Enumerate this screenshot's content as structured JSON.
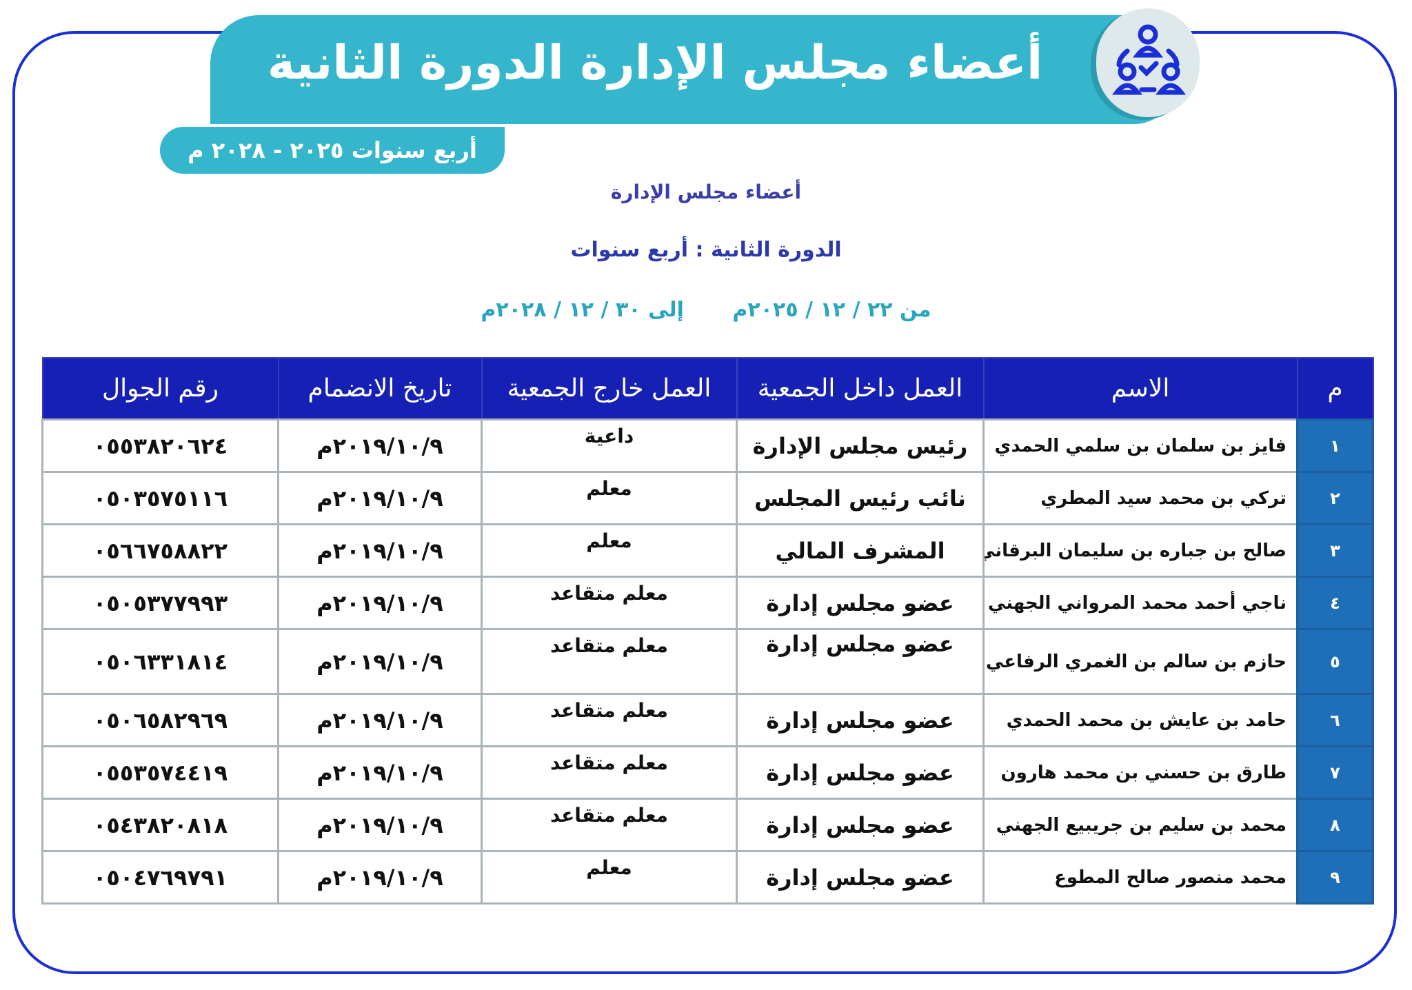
{
  "banner": {
    "title": "أعضاء مجلس الإدارة الدورة الثانية",
    "subtitle": "أربع سنوات ٢٠٢٥ - ٢٠٢٨ م",
    "icon": "team-check-icon"
  },
  "headings": {
    "line1": "أعضاء مجلس الإدارة",
    "line2": "الدورة الثانية : أربع سنوات",
    "from": "من ٢٢ / ١٢ / ٢٠٢٥م",
    "to": "إلى ٣٠ / ١٢ / ٢٠٢٨م"
  },
  "colors": {
    "frame": "#1b2fd6",
    "banner": "#36b6cc",
    "header": "#1720b5",
    "index": "#1f6fb8"
  },
  "table": {
    "headers": [
      "م",
      "الاسم",
      "العمل داخل الجمعية",
      "العمل خارج الجمعية",
      "تاريخ الانضمام",
      "رقم الجوال"
    ],
    "rows": [
      [
        "١",
        "فايز بن سلمان بن سلمي الحمدي",
        "رئيس مجلس الإدارة",
        "داعية",
        "٢٠١٩/١٠/٩م",
        "٠٥٥٣٨٢٠٦٢٤"
      ],
      [
        "٢",
        "تركي بن محمد سيد المطري",
        "نائب رئيس المجلس",
        "معلم",
        "٢٠١٩/١٠/٩م",
        "٠٥٠٣٥٧٥١١٦"
      ],
      [
        "٣",
        "صالح بن جباره بن سليمان البرقاني",
        "المشرف المالي",
        "معلم",
        "٢٠١٩/١٠/٩م",
        "٠٥٦٦٧٥٨٨٢٢"
      ],
      [
        "٤",
        "ناجي أحمد محمد المرواني الجهني",
        "عضو مجلس إدارة",
        "معلم متقاعد",
        "٢٠١٩/١٠/٩م",
        "٠٥٠٥٣٧٧٩٩٣"
      ],
      [
        "٥",
        "حازم بن سالم بن الغمري الرفاعي",
        "عضو مجلس إدارة",
        "معلم متقاعد",
        "٢٠١٩/١٠/٩م",
        "٠٥٠٦٣٣١٨١٤"
      ],
      [
        "٦",
        "حامد بن عايش بن محمد الحمدي",
        "عضو مجلس إدارة",
        "معلم متقاعد",
        "٢٠١٩/١٠/٩م",
        "٠٥٠٦٥٨٢٩٦٩"
      ],
      [
        "٧",
        "طارق بن حسني بن محمد هارون",
        "عضو مجلس إدارة",
        "معلم متقاعد",
        "٢٠١٩/١٠/٩م",
        "٠٥٥٣٥٧٤٤١٩"
      ],
      [
        "٨",
        "محمد بن سليم بن جريبيع الجهني",
        "عضو مجلس إدارة",
        "معلم متقاعد",
        "٢٠١٩/١٠/٩م",
        "٠٥٤٣٨٢٠٨١٨"
      ],
      [
        "٩",
        "محمد منصور صالح المطوع",
        "عضو مجلس إدارة",
        "معلم",
        "٢٠١٩/١٠/٩م",
        "٠٥٠٤٧٦٩٧٩١"
      ]
    ]
  }
}
